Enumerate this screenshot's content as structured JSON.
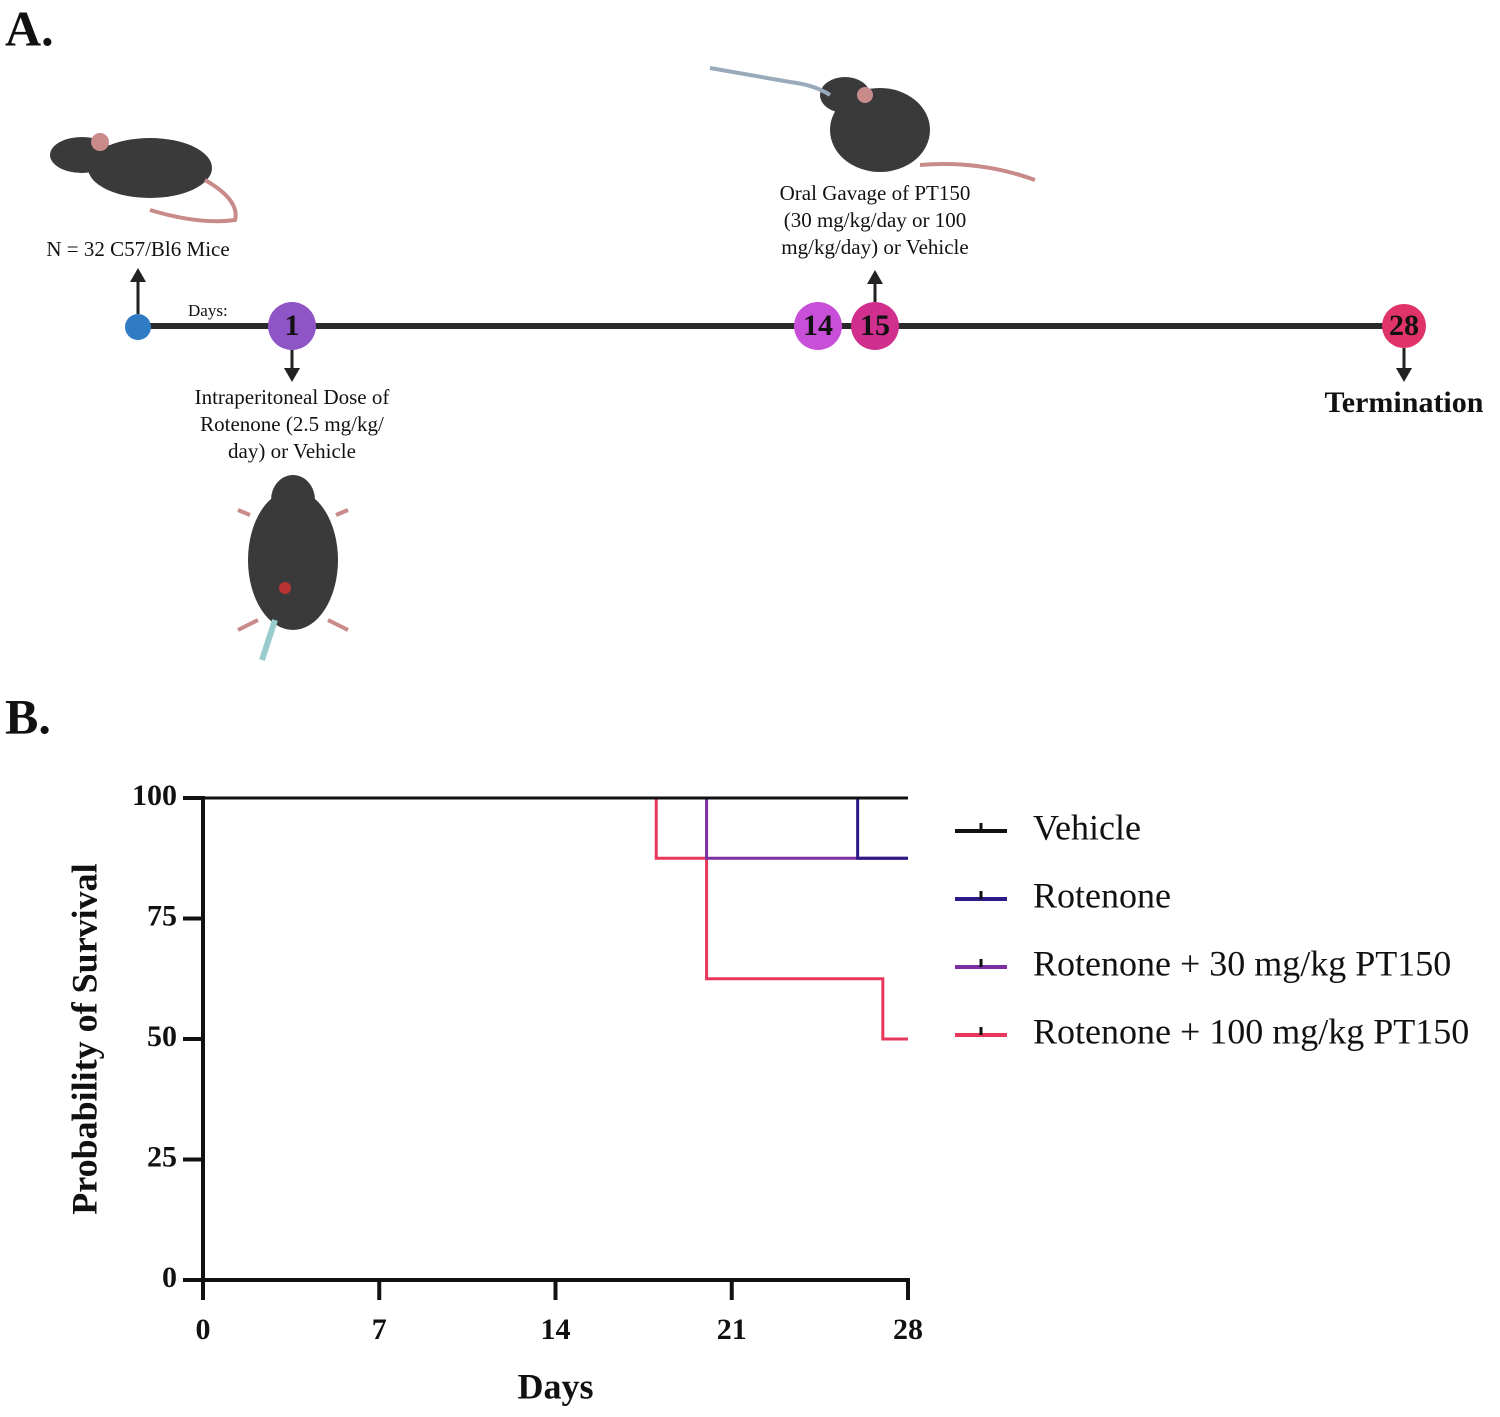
{
  "panel_a": {
    "label": "A.",
    "start_label": "N = 32 C57/Bl6 Mice",
    "days_label": "Days:",
    "nodes": [
      {
        "label": "1",
        "color": "#8e55c7"
      },
      {
        "label": "14",
        "color": "#c84fd8"
      },
      {
        "label": "15",
        "color": "#d12f8e"
      },
      {
        "label": "28",
        "color": "#e0336a"
      }
    ],
    "dose_text": [
      "Intraperitoneal Dose of",
      "Rotenone (2.5 mg/kg/",
      "day) or Vehicle"
    ],
    "gavage_text": [
      "Oral Gavage of PT150",
      "(30 mg/kg/day or 100",
      "mg/kg/day) or Vehicle"
    ],
    "end_label": "Termination"
  },
  "chart_data": {
    "type": "line",
    "panel_label": "B.",
    "xlabel": "Days",
    "ylabel": "Probability of Survival",
    "xlim": [
      0,
      28
    ],
    "xticks": [
      0,
      7,
      14,
      21,
      28
    ],
    "ylim": [
      0,
      100
    ],
    "yticks": [
      0,
      25,
      50,
      75,
      100
    ],
    "legend": "right",
    "series": [
      {
        "name": "Vehicle",
        "color": "#111111",
        "x": [
          0,
          28
        ],
        "values": [
          100,
          100
        ]
      },
      {
        "name": "Rotenone",
        "color": "#2e1a87",
        "x": [
          0,
          26,
          26,
          28
        ],
        "values": [
          100,
          100,
          87.5,
          87.5
        ]
      },
      {
        "name": "Rotenone + 30 mg/kg PT150",
        "color": "#7b2fa0",
        "x": [
          0,
          20,
          20,
          28
        ],
        "values": [
          100,
          100,
          87.5,
          87.5
        ]
      },
      {
        "name": "Rotenone + 100 mg/kg PT150",
        "color": "#e8375a",
        "x": [
          0,
          18,
          18,
          20,
          20,
          27,
          27,
          28
        ],
        "values": [
          100,
          100,
          87.5,
          87.5,
          62.5,
          62.5,
          50,
          50
        ]
      }
    ]
  }
}
